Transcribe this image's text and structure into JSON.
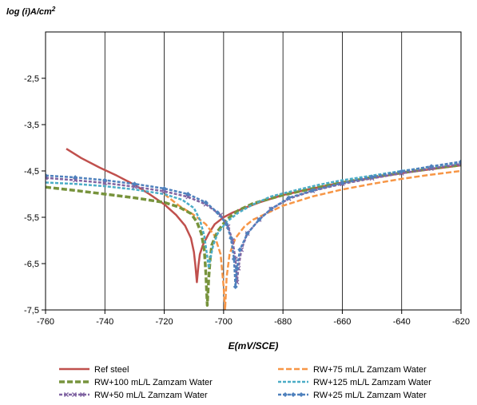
{
  "chart_data": {
    "type": "line",
    "ylabel": "log (i)A/cm",
    "ylabel_sup": "2",
    "xlabel": "E(mV/SCE)",
    "xlim": [
      -760,
      -620
    ],
    "ylim": [
      -7.5,
      -1.5
    ],
    "grid": "vertical",
    "legend_position": "bottom",
    "x_ticks": [
      {
        "value": -760,
        "label": "-760"
      },
      {
        "value": -740,
        "label": "-740"
      },
      {
        "value": -720,
        "label": "-720"
      },
      {
        "value": -700,
        "label": "-700"
      },
      {
        "value": -680,
        "label": "-680"
      },
      {
        "value": -660,
        "label": "-660"
      },
      {
        "value": -640,
        "label": "-640"
      },
      {
        "value": -620,
        "label": "-620"
      }
    ],
    "y_ticks": [
      {
        "value": -2.5,
        "label": "-2,5"
      },
      {
        "value": -3.5,
        "label": "-3,5"
      },
      {
        "value": -4.5,
        "label": "-4,5"
      },
      {
        "value": -5.5,
        "label": "-5,5"
      },
      {
        "value": -6.5,
        "label": "-6,5"
      },
      {
        "value": -7.5,
        "label": "-7,5"
      }
    ],
    "series": [
      {
        "name": "Ref steel",
        "color": "#C0504D",
        "dash": "solid",
        "marker": "none",
        "points": [
          [
            -753,
            -4.02
          ],
          [
            -748,
            -4.22
          ],
          [
            -742,
            -4.42
          ],
          [
            -736,
            -4.6
          ],
          [
            -730,
            -4.8
          ],
          [
            -725,
            -5.0
          ],
          [
            -720,
            -5.22
          ],
          [
            -716,
            -5.45
          ],
          [
            -713,
            -5.68
          ],
          [
            -711,
            -5.95
          ],
          [
            -710,
            -6.25
          ],
          [
            -709.5,
            -6.55
          ],
          [
            -709,
            -6.9
          ],
          [
            -708.5,
            -6.55
          ],
          [
            -708,
            -6.3
          ],
          [
            -707,
            -6.1
          ],
          [
            -705,
            -5.85
          ],
          [
            -703,
            -5.65
          ],
          [
            -700,
            -5.5
          ],
          [
            -697,
            -5.4
          ],
          [
            -693,
            -5.3
          ],
          [
            -688,
            -5.18
          ],
          [
            -680,
            -5.02
          ],
          [
            -670,
            -4.88
          ],
          [
            -660,
            -4.75
          ],
          [
            -650,
            -4.65
          ],
          [
            -640,
            -4.55
          ],
          [
            -630,
            -4.46
          ],
          [
            -620,
            -4.38
          ]
        ]
      },
      {
        "name": "RW+75 mL/L Zamzam Water",
        "color": "#F79646",
        "dash": "long",
        "marker": "none",
        "points": [
          [
            -720,
            -5.0
          ],
          [
            -715,
            -5.25
          ],
          [
            -710,
            -5.45
          ],
          [
            -706,
            -5.65
          ],
          [
            -703,
            -5.9
          ],
          [
            -701,
            -6.3
          ],
          [
            -700,
            -7.0
          ],
          [
            -699.5,
            -7.5
          ],
          [
            -699,
            -6.8
          ],
          [
            -698,
            -6.3
          ],
          [
            -696,
            -5.95
          ],
          [
            -693,
            -5.7
          ],
          [
            -690,
            -5.55
          ],
          [
            -685,
            -5.4
          ],
          [
            -680,
            -5.25
          ],
          [
            -670,
            -5.05
          ],
          [
            -660,
            -4.9
          ],
          [
            -650,
            -4.78
          ],
          [
            -640,
            -4.67
          ],
          [
            -630,
            -4.58
          ],
          [
            -620,
            -4.5
          ]
        ]
      },
      {
        "name": "RW+100 mL/L Zamzam Water",
        "color": "#77933C",
        "dash": "longwide",
        "marker": "none",
        "points": [
          [
            -760,
            -4.85
          ],
          [
            -750,
            -4.92
          ],
          [
            -740,
            -5.0
          ],
          [
            -730,
            -5.08
          ],
          [
            -720,
            -5.18
          ],
          [
            -715,
            -5.28
          ],
          [
            -711,
            -5.42
          ],
          [
            -709,
            -5.6
          ],
          [
            -707.5,
            -5.85
          ],
          [
            -706.5,
            -6.2
          ],
          [
            -706,
            -6.7
          ],
          [
            -705.5,
            -7.4
          ],
          [
            -705,
            -6.8
          ],
          [
            -704.5,
            -6.4
          ],
          [
            -704,
            -6.1
          ],
          [
            -702,
            -5.8
          ],
          [
            -699,
            -5.55
          ],
          [
            -695,
            -5.35
          ],
          [
            -690,
            -5.2
          ],
          [
            -680,
            -5.02
          ],
          [
            -670,
            -4.88
          ],
          [
            -660,
            -4.75
          ],
          [
            -650,
            -4.64
          ],
          [
            -640,
            -4.54
          ],
          [
            -630,
            -4.45
          ],
          [
            -620,
            -4.37
          ]
        ]
      },
      {
        "name": "RW+125 mL/L Zamzam Water",
        "color": "#4BACC6",
        "dash": "short",
        "marker": "none",
        "points": [
          [
            -760,
            -4.75
          ],
          [
            -750,
            -4.78
          ],
          [
            -740,
            -4.83
          ],
          [
            -730,
            -4.9
          ],
          [
            -720,
            -5.0
          ],
          [
            -714,
            -5.12
          ],
          [
            -710,
            -5.3
          ],
          [
            -708,
            -5.55
          ],
          [
            -706.5,
            -5.9
          ],
          [
            -705.5,
            -6.35
          ],
          [
            -705,
            -6.6
          ],
          [
            -704.5,
            -6.4
          ],
          [
            -703.5,
            -6.1
          ],
          [
            -702,
            -5.85
          ],
          [
            -699,
            -5.6
          ],
          [
            -695,
            -5.4
          ],
          [
            -690,
            -5.22
          ],
          [
            -684,
            -5.05
          ],
          [
            -676,
            -4.92
          ],
          [
            -668,
            -4.8
          ],
          [
            -660,
            -4.7
          ],
          [
            -650,
            -4.6
          ],
          [
            -640,
            -4.5
          ],
          [
            -630,
            -4.41
          ],
          [
            -620,
            -4.33
          ]
        ]
      },
      {
        "name": "RW+50 mL/L Zamzam Water",
        "color": "#8064A2",
        "dash": "short",
        "marker": "cross",
        "points": [
          [
            -760,
            -4.65
          ],
          [
            -750,
            -4.7
          ],
          [
            -740,
            -4.76
          ],
          [
            -730,
            -4.84
          ],
          [
            -720,
            -4.94
          ],
          [
            -712,
            -5.06
          ],
          [
            -706,
            -5.22
          ],
          [
            -701,
            -5.45
          ],
          [
            -698.5,
            -5.7
          ],
          [
            -697,
            -6.0
          ],
          [
            -696,
            -6.4
          ],
          [
            -695.5,
            -6.9
          ],
          [
            -695,
            -6.6
          ],
          [
            -694,
            -6.2
          ],
          [
            -692,
            -5.85
          ],
          [
            -688,
            -5.55
          ],
          [
            -684,
            -5.32
          ],
          [
            -678,
            -5.1
          ],
          [
            -670,
            -4.93
          ],
          [
            -660,
            -4.78
          ],
          [
            -650,
            -4.66
          ],
          [
            -640,
            -4.55
          ],
          [
            -630,
            -4.45
          ],
          [
            -620,
            -4.35
          ]
        ]
      },
      {
        "name": "RW+25 mL/L Zamzam Water",
        "color": "#4F81BD",
        "dash": "short",
        "marker": "diamond",
        "points": [
          [
            -760,
            -4.6
          ],
          [
            -750,
            -4.64
          ],
          [
            -740,
            -4.7
          ],
          [
            -730,
            -4.78
          ],
          [
            -720,
            -4.88
          ],
          [
            -712,
            -5.0
          ],
          [
            -706,
            -5.18
          ],
          [
            -702,
            -5.4
          ],
          [
            -699,
            -5.65
          ],
          [
            -697.5,
            -5.95
          ],
          [
            -696.5,
            -6.4
          ],
          [
            -696,
            -7.0
          ],
          [
            -695.5,
            -6.6
          ],
          [
            -694.5,
            -6.2
          ],
          [
            -692,
            -5.85
          ],
          [
            -688,
            -5.55
          ],
          [
            -684,
            -5.32
          ],
          [
            -678,
            -5.08
          ],
          [
            -670,
            -4.92
          ],
          [
            -660,
            -4.76
          ],
          [
            -650,
            -4.63
          ],
          [
            -640,
            -4.51
          ],
          [
            -630,
            -4.4
          ],
          [
            -620,
            -4.3
          ]
        ]
      }
    ]
  }
}
